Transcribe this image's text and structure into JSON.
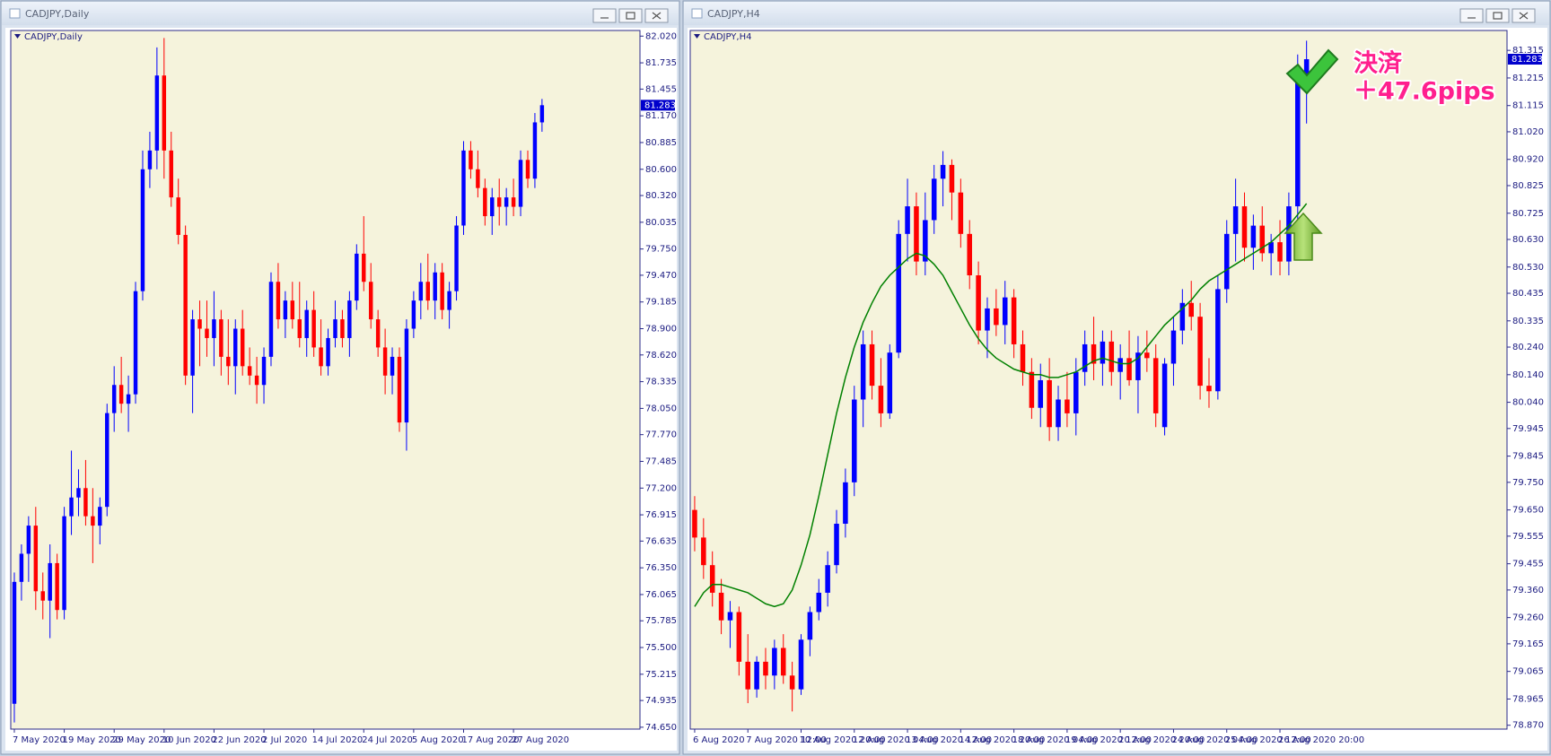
{
  "windows": [
    {
      "title": "CADJPY,Daily"
    },
    {
      "title": "CADJPY,H4"
    }
  ],
  "chart_data": [
    {
      "type": "candlestick",
      "title": "CADJPY,Daily",
      "bull_color": "#0000ff",
      "bear_color": "#ff0000",
      "ylim": [
        74.63,
        82.08
      ],
      "yticks": [
        {
          "value": 82.02,
          "label": "82.020"
        },
        81.735,
        81.455,
        {
          "value": 81.17,
          "label": "81.170"
        },
        80.885,
        {
          "value": 80.6,
          "label": "80.600"
        },
        {
          "value": 80.32,
          "label": "80.320"
        },
        80.035,
        {
          "value": 79.75,
          "label": "79.750"
        },
        {
          "value": 79.47,
          "label": "79.470"
        },
        79.185,
        {
          "value": 78.9,
          "label": "78.900"
        },
        {
          "value": 78.62,
          "label": "78.620"
        },
        78.335,
        {
          "value": 78.05,
          "label": "78.050"
        },
        {
          "value": 77.77,
          "label": "77.770"
        },
        77.485,
        {
          "value": 77.2,
          "label": "77.200"
        },
        76.915,
        76.635,
        {
          "value": 76.35,
          "label": "76.350"
        },
        76.065,
        75.785,
        {
          "value": 75.5,
          "label": "75.500"
        },
        75.215,
        74.935,
        {
          "value": 74.65,
          "label": "74.650"
        }
      ],
      "current_price": 81.283,
      "categories": [
        "7 May 2020",
        null,
        null,
        null,
        null,
        null,
        null,
        "19 May 2020",
        null,
        null,
        null,
        null,
        null,
        null,
        "29 May 2020",
        null,
        null,
        null,
        null,
        null,
        null,
        "10 Jun 2020",
        null,
        null,
        null,
        null,
        null,
        null,
        "22 Jun 2020",
        null,
        null,
        null,
        null,
        null,
        null,
        "2 Jul 2020",
        null,
        null,
        null,
        null,
        null,
        null,
        "14 Jul 2020",
        null,
        null,
        null,
        null,
        null,
        null,
        "24 Jul 2020",
        null,
        null,
        null,
        null,
        null,
        null,
        "5 Aug 2020",
        null,
        null,
        null,
        null,
        null,
        null,
        "17 Aug 2020",
        null,
        null,
        null,
        null,
        null,
        null,
        "27 Aug 2020",
        null,
        null,
        null,
        null
      ],
      "ohlc": [
        [
          74.9,
          76.3,
          74.7,
          76.2
        ],
        [
          76.2,
          76.6,
          76.0,
          76.5
        ],
        [
          76.5,
          76.9,
          76.2,
          76.8
        ],
        [
          76.8,
          77.0,
          75.9,
          76.1
        ],
        [
          76.1,
          76.3,
          75.8,
          76.0
        ],
        [
          76.0,
          76.6,
          75.6,
          76.4
        ],
        [
          76.4,
          76.5,
          75.8,
          75.9
        ],
        [
          75.9,
          77.0,
          75.8,
          76.9
        ],
        [
          76.9,
          77.6,
          76.7,
          77.1
        ],
        [
          77.1,
          77.4,
          76.9,
          77.2
        ],
        [
          77.2,
          77.5,
          76.8,
          76.9
        ],
        [
          76.9,
          77.2,
          76.4,
          76.8
        ],
        [
          76.8,
          77.1,
          76.6,
          77.0
        ],
        [
          77.0,
          78.1,
          76.9,
          78.0
        ],
        [
          78.0,
          78.5,
          77.8,
          78.3
        ],
        [
          78.3,
          78.6,
          78.0,
          78.1
        ],
        [
          78.1,
          78.4,
          77.8,
          78.2
        ],
        [
          78.2,
          79.4,
          78.1,
          79.3
        ],
        [
          79.3,
          80.8,
          79.2,
          80.6
        ],
        [
          80.6,
          81.0,
          80.4,
          80.8
        ],
        [
          80.8,
          81.9,
          80.6,
          81.6
        ],
        [
          81.6,
          82.0,
          80.5,
          80.8
        ],
        [
          80.8,
          81.0,
          80.2,
          80.3
        ],
        [
          80.3,
          80.5,
          79.8,
          79.9
        ],
        [
          79.9,
          80.0,
          78.3,
          78.4
        ],
        [
          78.4,
          79.1,
          78.0,
          79.0
        ],
        [
          79.0,
          79.2,
          78.5,
          78.9
        ],
        [
          78.9,
          79.2,
          78.6,
          78.8
        ],
        [
          78.8,
          79.3,
          78.5,
          79.0
        ],
        [
          79.0,
          79.1,
          78.4,
          78.6
        ],
        [
          78.6,
          79.0,
          78.3,
          78.5
        ],
        [
          78.5,
          79.0,
          78.2,
          78.9
        ],
        [
          78.9,
          79.1,
          78.4,
          78.5
        ],
        [
          78.5,
          78.7,
          78.3,
          78.4
        ],
        [
          78.4,
          78.6,
          78.1,
          78.3
        ],
        [
          78.3,
          78.7,
          78.1,
          78.6
        ],
        [
          78.6,
          79.5,
          78.5,
          79.4
        ],
        [
          79.4,
          79.6,
          78.9,
          79.0
        ],
        [
          79.0,
          79.3,
          78.8,
          79.2
        ],
        [
          79.2,
          79.4,
          78.9,
          79.0
        ],
        [
          79.0,
          79.4,
          78.7,
          78.8
        ],
        [
          78.8,
          79.2,
          78.6,
          79.1
        ],
        [
          79.1,
          79.3,
          78.6,
          78.7
        ],
        [
          78.7,
          79.0,
          78.4,
          78.5
        ],
        [
          78.5,
          78.9,
          78.4,
          78.8
        ],
        [
          78.8,
          79.2,
          78.7,
          79.0
        ],
        [
          79.0,
          79.1,
          78.7,
          78.8
        ],
        [
          78.8,
          79.3,
          78.6,
          79.2
        ],
        [
          79.2,
          79.8,
          79.1,
          79.7
        ],
        [
          79.7,
          80.1,
          79.3,
          79.4
        ],
        [
          79.4,
          79.6,
          78.9,
          79.0
        ],
        [
          79.0,
          79.1,
          78.6,
          78.7
        ],
        [
          78.7,
          78.9,
          78.2,
          78.4
        ],
        [
          78.4,
          78.7,
          78.2,
          78.6
        ],
        [
          78.6,
          78.7,
          77.8,
          77.9
        ],
        [
          77.9,
          79.0,
          77.6,
          78.9
        ],
        [
          78.9,
          79.3,
          78.8,
          79.2
        ],
        [
          79.2,
          79.6,
          79.0,
          79.4
        ],
        [
          79.4,
          79.7,
          79.1,
          79.2
        ],
        [
          79.2,
          79.6,
          79.0,
          79.5
        ],
        [
          79.5,
          79.6,
          79.0,
          79.1
        ],
        [
          79.1,
          79.4,
          78.9,
          79.3
        ],
        [
          79.3,
          80.1,
          79.2,
          80.0
        ],
        [
          80.0,
          80.9,
          79.9,
          80.8
        ],
        [
          80.8,
          80.9,
          80.5,
          80.6
        ],
        [
          80.6,
          80.8,
          80.3,
          80.4
        ],
        [
          80.4,
          80.5,
          80.0,
          80.1
        ],
        [
          80.1,
          80.4,
          79.9,
          80.3
        ],
        [
          80.3,
          80.5,
          80.0,
          80.2
        ],
        [
          80.2,
          80.4,
          80.0,
          80.3
        ],
        [
          80.3,
          80.5,
          80.1,
          80.2
        ],
        [
          80.2,
          80.8,
          80.1,
          80.7
        ],
        [
          80.7,
          80.8,
          80.4,
          80.5
        ],
        [
          80.5,
          81.2,
          80.4,
          81.1
        ],
        [
          81.1,
          81.35,
          81.0,
          81.283
        ]
      ]
    },
    {
      "type": "candlestick",
      "title": "CADJPY,H4",
      "bull_color": "#0000ff",
      "bear_color": "#ff0000",
      "ylim": [
        78.856,
        81.387
      ],
      "yticks": [
        81.315,
        81.215,
        81.115,
        {
          "value": 81.02,
          "label": "81.020"
        },
        {
          "value": 80.92,
          "label": "80.920"
        },
        80.825,
        80.725,
        {
          "value": 80.63,
          "label": "80.630"
        },
        {
          "value": 80.53,
          "label": "80.530"
        },
        80.435,
        80.335,
        {
          "value": 80.24,
          "label": "80.240"
        },
        {
          "value": 80.14,
          "label": "80.140"
        },
        {
          "value": 80.04,
          "label": "80.040"
        },
        79.945,
        79.845,
        {
          "value": 79.75,
          "label": "79.750"
        },
        {
          "value": 79.65,
          "label": "79.650"
        },
        79.555,
        79.455,
        {
          "value": 79.36,
          "label": "79.360"
        },
        {
          "value": 79.26,
          "label": "79.260"
        },
        79.165,
        79.065,
        78.965,
        {
          "value": 78.87,
          "label": "78.870"
        }
      ],
      "current_price": 81.283,
      "categories": [
        "6 Aug 2020",
        null,
        null,
        null,
        null,
        null,
        "7 Aug 2020 12:00",
        null,
        null,
        null,
        null,
        null,
        "10 Aug 2020 20:00",
        null,
        null,
        null,
        null,
        null,
        "12 Aug 2020 04:00",
        null,
        null,
        null,
        null,
        null,
        "13 Aug 2020 12:00",
        null,
        null,
        null,
        null,
        null,
        "14 Aug 2020 20:00",
        null,
        null,
        null,
        null,
        null,
        "18 Aug 2020 04:00",
        null,
        null,
        null,
        null,
        null,
        "19 Aug 2020 12:00",
        null,
        null,
        null,
        null,
        null,
        "20 Aug 2020 20:00",
        null,
        null,
        null,
        null,
        null,
        "24 Aug 2020 04:00",
        null,
        null,
        null,
        null,
        null,
        "25 Aug 2020 12:00",
        null,
        null,
        null,
        null,
        null,
        "26 Aug 2020 20:00",
        null,
        null,
        null
      ],
      "ohlc": [
        [
          79.65,
          79.7,
          79.5,
          79.55
        ],
        [
          79.55,
          79.62,
          79.4,
          79.45
        ],
        [
          79.45,
          79.5,
          79.3,
          79.35
        ],
        [
          79.35,
          79.4,
          79.2,
          79.25
        ],
        [
          79.25,
          79.32,
          79.15,
          79.28
        ],
        [
          79.28,
          79.3,
          79.05,
          79.1
        ],
        [
          79.1,
          79.2,
          78.95,
          79.0
        ],
        [
          79.0,
          79.12,
          78.97,
          79.1
        ],
        [
          79.1,
          79.15,
          79.0,
          79.05
        ],
        [
          79.05,
          79.18,
          79.0,
          79.15
        ],
        [
          79.15,
          79.2,
          79.02,
          79.05
        ],
        [
          79.05,
          79.1,
          78.92,
          79.0
        ],
        [
          79.0,
          79.2,
          78.98,
          79.18
        ],
        [
          79.18,
          79.3,
          79.12,
          79.28
        ],
        [
          79.28,
          79.4,
          79.25,
          79.35
        ],
        [
          79.35,
          79.5,
          79.3,
          79.45
        ],
        [
          79.45,
          79.65,
          79.42,
          79.6
        ],
        [
          79.6,
          79.8,
          79.55,
          79.75
        ],
        [
          79.75,
          80.1,
          79.7,
          80.05
        ],
        [
          80.05,
          80.3,
          79.95,
          80.25
        ],
        [
          80.25,
          80.3,
          80.05,
          80.1
        ],
        [
          80.1,
          80.2,
          79.95,
          80.0
        ],
        [
          80.0,
          80.25,
          79.98,
          80.22
        ],
        [
          80.22,
          80.7,
          80.2,
          80.65
        ],
        [
          80.65,
          80.85,
          80.55,
          80.75
        ],
        [
          80.75,
          80.8,
          80.5,
          80.55
        ],
        [
          80.55,
          80.8,
          80.5,
          80.7
        ],
        [
          80.7,
          80.9,
          80.65,
          80.85
        ],
        [
          80.85,
          80.95,
          80.75,
          80.9
        ],
        [
          80.9,
          80.92,
          80.7,
          80.8
        ],
        [
          80.8,
          80.85,
          80.6,
          80.65
        ],
        [
          80.65,
          80.7,
          80.45,
          80.5
        ],
        [
          80.5,
          80.55,
          80.25,
          80.3
        ],
        [
          80.3,
          80.42,
          80.2,
          80.38
        ],
        [
          80.38,
          80.45,
          80.28,
          80.32
        ],
        [
          80.32,
          80.48,
          80.25,
          80.42
        ],
        [
          80.42,
          80.45,
          80.2,
          80.25
        ],
        [
          80.25,
          80.3,
          80.1,
          80.15
        ],
        [
          80.15,
          80.2,
          79.98,
          80.02
        ],
        [
          80.02,
          80.18,
          79.95,
          80.12
        ],
        [
          80.12,
          80.2,
          79.9,
          79.95
        ],
        [
          79.95,
          80.1,
          79.9,
          80.05
        ],
        [
          80.05,
          80.15,
          79.95,
          80.0
        ],
        [
          80.0,
          80.2,
          79.92,
          80.15
        ],
        [
          80.15,
          80.3,
          80.1,
          80.25
        ],
        [
          80.25,
          80.35,
          80.12,
          80.18
        ],
        [
          80.18,
          80.3,
          80.1,
          80.26
        ],
        [
          80.26,
          80.3,
          80.1,
          80.15
        ],
        [
          80.15,
          80.25,
          80.05,
          80.2
        ],
        [
          80.2,
          80.3,
          80.1,
          80.12
        ],
        [
          80.12,
          80.28,
          80.0,
          80.22
        ],
        [
          80.22,
          80.3,
          80.15,
          80.2
        ],
        [
          80.2,
          80.25,
          79.95,
          80.0
        ],
        [
          79.95,
          80.2,
          79.92,
          80.18
        ],
        [
          80.18,
          80.35,
          80.1,
          80.3
        ],
        [
          80.3,
          80.45,
          80.25,
          80.4
        ],
        [
          80.4,
          80.48,
          80.3,
          80.35
        ],
        [
          80.35,
          80.4,
          80.05,
          80.1
        ],
        [
          80.1,
          80.2,
          80.02,
          80.08
        ],
        [
          80.08,
          80.5,
          80.05,
          80.45
        ],
        [
          80.45,
          80.7,
          80.4,
          80.65
        ],
        [
          80.65,
          80.85,
          80.55,
          80.75
        ],
        [
          80.75,
          80.8,
          80.55,
          80.6
        ],
        [
          80.6,
          80.72,
          80.52,
          80.68
        ],
        [
          80.68,
          80.75,
          80.55,
          80.58
        ],
        [
          80.58,
          80.65,
          80.5,
          80.62
        ],
        [
          80.62,
          80.7,
          80.5,
          80.55
        ],
        [
          80.55,
          80.8,
          80.5,
          80.75
        ],
        [
          80.75,
          81.3,
          80.7,
          81.2
        ],
        [
          81.2,
          81.35,
          81.05,
          81.283
        ]
      ],
      "ma": {
        "color": "#008000",
        "values": [
          79.3,
          79.35,
          79.38,
          79.38,
          79.37,
          79.36,
          79.35,
          79.33,
          79.31,
          79.3,
          79.31,
          79.36,
          79.45,
          79.56,
          79.7,
          79.85,
          80.0,
          80.13,
          80.24,
          80.33,
          80.4,
          80.46,
          80.5,
          80.53,
          80.56,
          80.58,
          80.57,
          80.54,
          80.5,
          80.44,
          80.38,
          80.32,
          80.27,
          80.23,
          80.2,
          80.18,
          80.16,
          80.15,
          80.14,
          80.14,
          80.13,
          80.13,
          80.14,
          80.15,
          80.17,
          80.19,
          80.2,
          80.19,
          80.18,
          80.18,
          80.2,
          80.24,
          80.28,
          80.32,
          80.35,
          80.38,
          80.41,
          80.45,
          80.48,
          80.5,
          80.52,
          80.54,
          80.56,
          80.58,
          80.6,
          80.62,
          80.65,
          80.68,
          80.72,
          80.76
        ]
      },
      "annotations": [
        "決済",
        "＋47.6pips"
      ]
    }
  ]
}
